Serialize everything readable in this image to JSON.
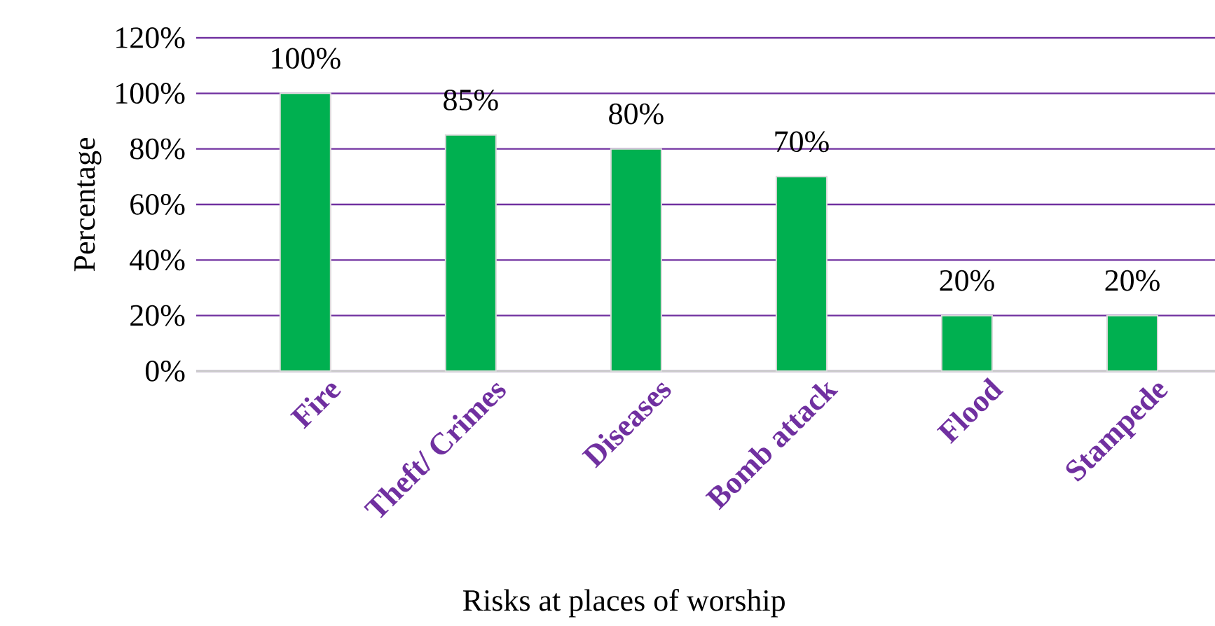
{
  "chart_data": {
    "type": "bar",
    "xlabel": "Risks at places of worship",
    "ylabel": "Percentage",
    "categories": [
      "Fire",
      "Theft/ Crimes",
      "Diseases",
      "Bomb attack",
      "Flood",
      "Stampede"
    ],
    "values": [
      100,
      85,
      80,
      70,
      20,
      20
    ],
    "value_labels": [
      "100%",
      "85%",
      "80%",
      "70%",
      "20%",
      "20%"
    ],
    "color": "#00b050",
    "ylim": [
      0,
      120
    ],
    "yticks": [
      {
        "value": 0,
        "label": "0%"
      },
      {
        "value": 20,
        "label": "20%"
      },
      {
        "value": 40,
        "label": "40%"
      },
      {
        "value": 60,
        "label": "60%"
      },
      {
        "value": 80,
        "label": "80%"
      },
      {
        "value": 100,
        "label": "100%"
      },
      {
        "value": 120,
        "label": "120%"
      }
    ],
    "grid": "y"
  }
}
